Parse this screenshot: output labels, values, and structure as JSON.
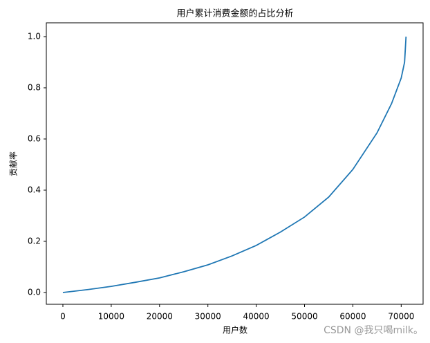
{
  "chart_data": {
    "type": "line",
    "title": "用户累计消费金额的占比分析",
    "x_label": "用户数",
    "y_label": "贡献率",
    "x": [
      0,
      5000,
      10000,
      15000,
      20000,
      25000,
      30000,
      35000,
      40000,
      45000,
      50000,
      55000,
      60000,
      65000,
      68000,
      70000,
      70700,
      71000
    ],
    "series": [
      {
        "name": "贡献率",
        "color": "#1f77b4",
        "values": [
          0,
          0.011,
          0.024,
          0.04,
          0.057,
          0.081,
          0.108,
          0.143,
          0.184,
          0.236,
          0.295,
          0.373,
          0.481,
          0.624,
          0.738,
          0.838,
          0.9,
          1.0
        ]
      }
    ],
    "xlim": [
      -3430,
      74530
    ],
    "ylim": [
      -0.046,
      1.054
    ],
    "xticks": [
      0,
      10000,
      20000,
      30000,
      40000,
      50000,
      60000,
      70000
    ],
    "yticks": [
      {
        "value": 0,
        "label": "0.0"
      },
      {
        "value": 0.2,
        "label": "0.2"
      },
      {
        "value": 0.4,
        "label": "0.4"
      },
      {
        "value": 0.6,
        "label": "0.6"
      },
      {
        "value": 0.8,
        "label": "0.8"
      },
      {
        "value": 1,
        "label": "1.0"
      }
    ],
    "grid": false,
    "watermark": "CSDN @我只喝milk。"
  }
}
